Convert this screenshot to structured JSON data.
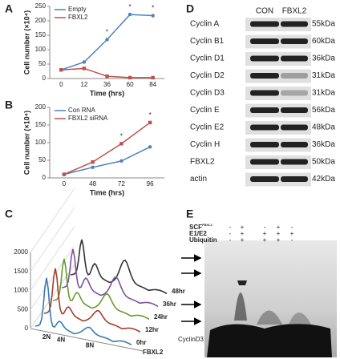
{
  "chart_data": [
    {
      "type": "line",
      "panel": "A",
      "categories": [
        "0",
        "12",
        "36",
        "60",
        "84"
      ],
      "series": [
        {
          "name": "Empty",
          "color": "#4f81bd",
          "values": [
            30,
            57,
            135,
            222,
            218
          ]
        },
        {
          "name": "FBXL2",
          "color": "#c0504d",
          "values": [
            30,
            35,
            8,
            3,
            3
          ]
        }
      ],
      "significance": [
        null,
        null,
        "*",
        "*",
        "*"
      ],
      "ylim": [
        0,
        250
      ],
      "yticks": [
        0,
        50,
        100,
        150,
        200,
        250
      ],
      "xlabel": "Time (hrs)",
      "ylabel": "Cell number (×10⁴)"
    },
    {
      "type": "line",
      "panel": "B",
      "categories": [
        "0",
        "48",
        "72",
        "96"
      ],
      "series": [
        {
          "name": "Con RNA",
          "color": "#4f81bd",
          "values": [
            10,
            30,
            48,
            88
          ]
        },
        {
          "name": "FBXL2 siRNA",
          "color": "#c0504d",
          "values": [
            10,
            45,
            97,
            157
          ]
        }
      ],
      "significance": [
        null,
        null,
        "*",
        "*"
      ],
      "ylim": [
        0,
        200
      ],
      "yticks": [
        0,
        50,
        100,
        150,
        200
      ],
      "xlabel": "Time (hrs)",
      "ylabel": "Cell number (×10⁴)"
    }
  ],
  "flow_panel": {
    "panel": "C",
    "yticks": [
      0,
      500,
      1000,
      1500,
      2000
    ],
    "xlabels": [
      "2N",
      "4N",
      "8N"
    ],
    "series_labels": [
      "48hr",
      "36hr",
      "24hr",
      "12hr",
      "0hr"
    ],
    "axis_label": "FBXL2"
  },
  "western_blot": {
    "panel": "D",
    "columns": [
      "CON",
      "FBXL2"
    ],
    "rows": [
      {
        "label": "Cyclin A",
        "size": "55kDa"
      },
      {
        "label": "Cyclin B1",
        "size": "60kDa"
      },
      {
        "label": "Cyclin D1",
        "size": "36kDa"
      },
      {
        "label": "Cyclin D2",
        "size": "31kDa"
      },
      {
        "label": "Cyclin D3",
        "size": "31kDa"
      },
      {
        "label": "Cyclin E",
        "size": "56kDa"
      },
      {
        "label": "Cyclin E2",
        "size": "48kDa"
      },
      {
        "label": "Cyclin H",
        "size": "36kDa"
      },
      {
        "label": "FBXL2",
        "size": "50kDa"
      },
      {
        "label": "actin",
        "size": "42kDa"
      }
    ]
  },
  "ubiquitination": {
    "panel": "E",
    "conditions": [
      {
        "label": "SCF",
        "superscript": "FBXL2",
        "signs": [
          "-",
          "+",
          "-",
          "+",
          "-"
        ]
      },
      {
        "label": "E1/E2",
        "signs": [
          "-",
          "+",
          "+",
          "+",
          "+"
        ]
      },
      {
        "label": "Ubiquitin",
        "signs": [
          "-",
          "+",
          "+",
          "+",
          "-"
        ]
      }
    ],
    "band_label": "CyclinD3"
  }
}
